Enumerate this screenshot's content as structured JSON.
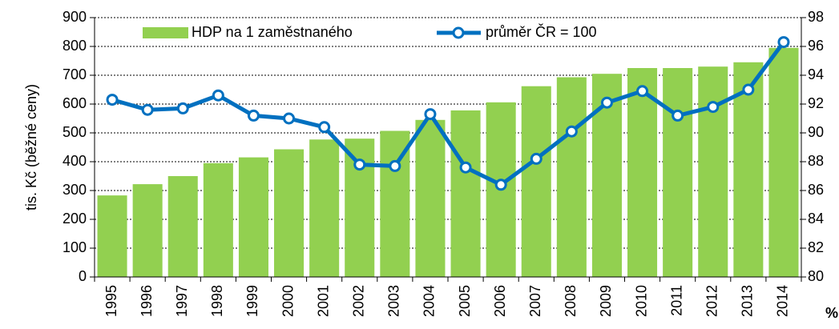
{
  "chart_data": {
    "type": "bar_line",
    "ylabel": "tis. Kč (běžné ceny)",
    "y2label": "%",
    "categories": [
      "1995",
      "1996",
      "1997",
      "1998",
      "1999",
      "2000",
      "2001",
      "2002",
      "2003",
      "2004",
      "2005",
      "2006",
      "2007",
      "2008",
      "2009",
      "2010",
      "2011",
      "2012",
      "2013",
      "2014"
    ],
    "series": [
      {
        "name": "HDP na 1 zaměstnaného",
        "type": "bar",
        "color": "#92d050",
        "values": [
          283,
          322,
          350,
          395,
          415,
          443,
          477,
          480,
          507,
          545,
          578,
          606,
          662,
          693,
          705,
          725,
          725,
          730,
          745,
          795
        ]
      },
      {
        "name": "průměr ČR = 100",
        "type": "line",
        "axis": "y2",
        "color": "#0070c0",
        "values": [
          92.3,
          91.6,
          91.7,
          92.6,
          91.2,
          91.0,
          90.4,
          87.8,
          87.7,
          91.3,
          87.6,
          86.4,
          88.2,
          90.1,
          92.1,
          92.9,
          91.2,
          91.8,
          93.0,
          96.3
        ]
      }
    ],
    "ylim": [
      0,
      900
    ],
    "yticks": [
      0,
      100,
      200,
      300,
      400,
      500,
      600,
      700,
      800,
      900
    ],
    "y2lim": [
      80,
      98
    ],
    "y2ticks": [
      80,
      82,
      84,
      86,
      88,
      90,
      92,
      94,
      96,
      98
    ],
    "grid": true,
    "legend": "top"
  }
}
